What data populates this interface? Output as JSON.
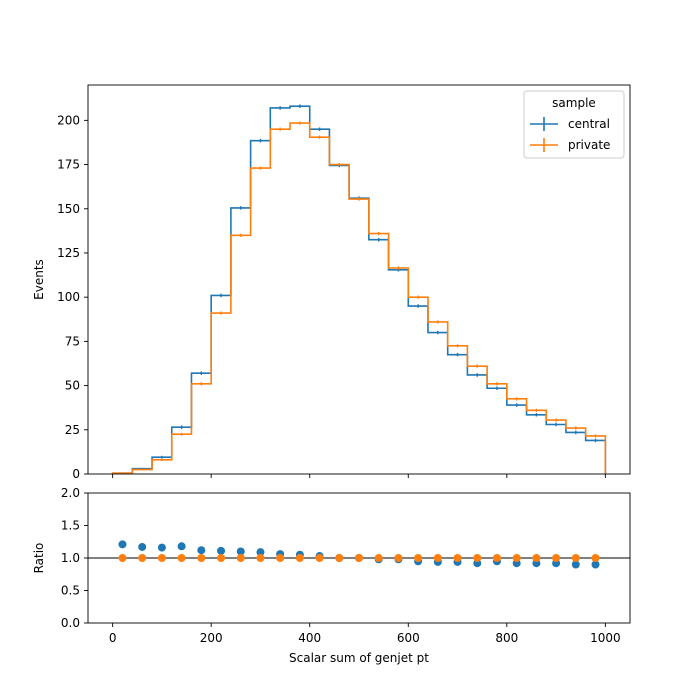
{
  "chart_data": [
    {
      "type": "step",
      "xlabel": "",
      "ylabel": "Events",
      "xlim": [
        -50,
        1050
      ],
      "ylim": [
        0,
        220
      ],
      "yticks": [
        0,
        25,
        50,
        75,
        100,
        125,
        150,
        175,
        200
      ],
      "xticks": [
        0,
        200,
        400,
        600,
        800,
        1000
      ],
      "bin_edges": [
        0,
        40,
        80,
        120,
        160,
        200,
        240,
        280,
        320,
        360,
        400,
        440,
        480,
        520,
        560,
        600,
        640,
        680,
        720,
        760,
        800,
        840,
        880,
        920,
        960,
        1000
      ],
      "legend": {
        "title": "sample",
        "placement": "top-right"
      },
      "series": [
        {
          "name": "central",
          "color": "#1f77b4",
          "values": [
            0.5,
            3,
            9.5,
            26.5,
            57,
            101,
            150.5,
            188.5,
            207,
            208,
            195,
            174.5,
            156,
            132.5,
            115.5,
            95,
            80,
            67.5,
            56,
            48.5,
            39,
            33.5,
            28,
            23.5,
            19
          ],
          "errors": [
            0.2,
            0.5,
            0.8,
            1.0,
            1.0,
            1.0,
            1.0,
            1.0,
            1.0,
            1.0,
            1.0,
            1.0,
            1.0,
            1.0,
            1.0,
            1.0,
            1.0,
            1.0,
            1.0,
            1.0,
            1.0,
            1.0,
            1.0,
            1.0,
            1.0
          ]
        },
        {
          "name": "private",
          "color": "#ff7f0e",
          "values": [
            0.5,
            2.5,
            8,
            22.5,
            51,
            91,
            135,
            173,
            195,
            198.5,
            190.5,
            175,
            155.5,
            136,
            116.5,
            100,
            86,
            72.5,
            61,
            51,
            42.5,
            36,
            30.5,
            26,
            21.5
          ],
          "errors": [
            0.2,
            0.4,
            0.6,
            0.8,
            0.9,
            0.9,
            0.9,
            0.9,
            0.9,
            0.9,
            0.9,
            0.9,
            0.9,
            0.9,
            0.9,
            0.9,
            0.9,
            0.9,
            0.9,
            0.9,
            0.9,
            0.9,
            0.9,
            0.9,
            0.9
          ]
        }
      ]
    },
    {
      "type": "scatter",
      "xlabel": "Scalar sum of genjet pt",
      "ylabel": "Ratio",
      "xlim": [
        -50,
        1050
      ],
      "ylim": [
        0,
        2
      ],
      "yticks": [
        0.0,
        0.5,
        1.0,
        1.5,
        2.0
      ],
      "yticklabels": [
        "0.0",
        "0.5",
        "1.0",
        "1.5",
        "2.0"
      ],
      "xticks": [
        0,
        200,
        400,
        600,
        800,
        1000
      ],
      "reference_line": 1.0,
      "x": [
        20,
        60,
        100,
        140,
        180,
        220,
        260,
        300,
        340,
        380,
        420,
        460,
        500,
        540,
        580,
        620,
        660,
        700,
        740,
        780,
        820,
        860,
        900,
        940,
        980
      ],
      "series": [
        {
          "name": "central",
          "color": "#1f77b4",
          "values": [
            1.21,
            1.17,
            1.16,
            1.18,
            1.12,
            1.11,
            1.1,
            1.09,
            1.06,
            1.05,
            1.03,
            1.0,
            1.0,
            0.98,
            0.98,
            0.95,
            0.94,
            0.94,
            0.92,
            0.95,
            0.92,
            0.92,
            0.92,
            0.9,
            0.9
          ]
        },
        {
          "name": "private",
          "color": "#ff7f0e",
          "values": [
            1,
            1,
            1,
            1,
            1,
            1,
            1,
            1,
            1,
            1,
            1,
            1,
            1,
            1,
            1,
            1,
            1,
            1,
            1,
            1,
            1,
            1,
            1,
            1,
            1
          ]
        }
      ]
    }
  ]
}
